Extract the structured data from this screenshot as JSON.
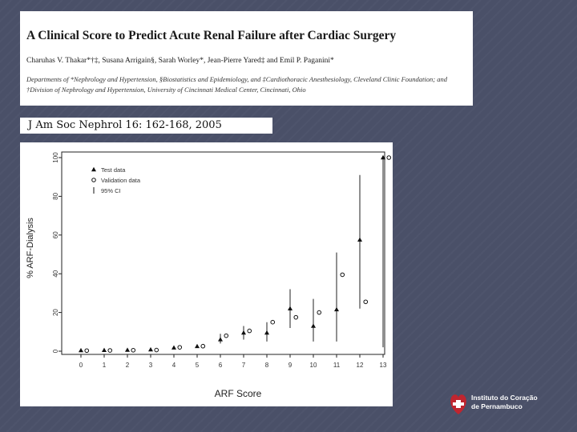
{
  "paper": {
    "title": "A Clinical Score to Predict Acute Renal Failure after Cardiac Surgery",
    "authors": "Charuhas V. Thakar*†‡, Susana Arrigain§, Sarah Worley*, Jean-Pierre Yared‡ and Emil P. Paganini*",
    "affiliations": "Departments of *Nephrology and Hypertension, §Biostatistics and Epidemiology, and ‡Cardiothoracic Anesthesiology, Cleveland Clinic Foundation; and †Division of Nephrology and Hypertension, University of Cincinnati Medical Center, Cincinnati, Ohio",
    "citation": "J Am Soc Nephrol 16: 162-168, 2005"
  },
  "chart_data": {
    "type": "scatter",
    "title": "",
    "xlabel": "ARF Score",
    "ylabel": "% ARF-Dialysis",
    "xlim": [
      0,
      13
    ],
    "ylim": [
      0,
      100
    ],
    "x_ticks": [
      "0",
      "1",
      "2",
      "3",
      "4",
      "5",
      "6",
      "7",
      "8",
      "9",
      "10",
      "11",
      "12",
      "13"
    ],
    "y_ticks": [
      "0",
      "20",
      "40",
      "60",
      "80",
      "100"
    ],
    "legend": {
      "placement": "top-left",
      "entries": [
        "Test data",
        "Validation data",
        "95% CI"
      ]
    },
    "series": [
      {
        "name": "Test data",
        "marker": "filled-triangle",
        "x": [
          0,
          1,
          2,
          3,
          4,
          5,
          6,
          7,
          8,
          9,
          10,
          11,
          12,
          13
        ],
        "values": [
          0.4,
          0.5,
          0.6,
          0.8,
          1.8,
          2.5,
          6.0,
          9.5,
          9.5,
          22.0,
          13.0,
          21.5,
          57.5,
          100.0
        ]
      },
      {
        "name": "Validation data",
        "marker": "open-circle",
        "x": [
          0.25,
          1.25,
          2.25,
          3.25,
          4.25,
          5.25,
          6.25,
          7.25,
          8.25,
          9.25,
          10.25,
          11.25,
          12.25,
          13.25
        ],
        "values": [
          0.3,
          0.4,
          0.5,
          0.6,
          2.0,
          2.6,
          8.0,
          10.5,
          15.0,
          17.5,
          20.0,
          39.5,
          25.5,
          100.0
        ]
      },
      {
        "name": "95% CI",
        "marker": "vertical-line",
        "x": [
          6,
          7,
          8,
          9,
          10,
          11,
          12,
          13
        ],
        "lower": [
          4,
          6,
          5,
          12,
          5,
          5,
          22,
          2
        ],
        "upper": [
          9,
          13,
          15,
          32,
          27,
          51,
          91,
          100
        ]
      }
    ]
  },
  "logo": {
    "line1": "Instituto do Coração",
    "line2": "de Pernambuco",
    "color": "#c0252f"
  }
}
